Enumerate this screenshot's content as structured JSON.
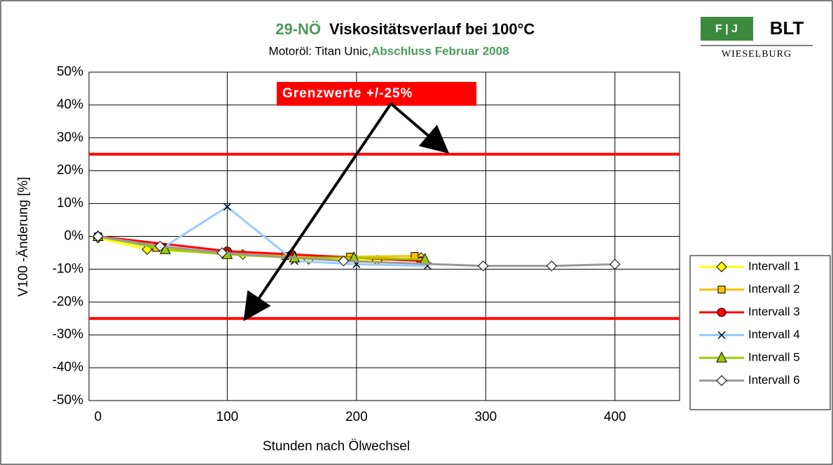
{
  "chart_data": {
    "type": "line",
    "title_parts": [
      "29-NÖ",
      "Viskositätsverlauf bei 100°C"
    ],
    "subtitle_parts": [
      "Motoröl: Titan Unic, ",
      "Abschluss Februar 2008"
    ],
    "logo": {
      "left": "F | J",
      "right": "BLT",
      "bottom": "WIESELBURG"
    },
    "xlabel": "Stunden nach Ölwechsel",
    "ylabel": "V100 -Änderung [%]",
    "annotation": "Grenzwerte +/-25%",
    "limit_lines": [
      25,
      -25
    ],
    "limit_color": "#ff0000",
    "xlim": [
      -7,
      450
    ],
    "xticks": [
      0,
      100,
      200,
      300,
      400
    ],
    "ylim": [
      -50,
      50
    ],
    "yticks": [
      {
        "value": -50,
        "label": "-50%"
      },
      {
        "value": -40,
        "label": "-40%"
      },
      {
        "value": -30,
        "label": "-30%"
      },
      {
        "value": -20,
        "label": "-20%"
      },
      {
        "value": -10,
        "label": "-10%"
      },
      {
        "value": 0,
        "label": "0%"
      },
      {
        "value": 10,
        "label": "10%"
      },
      {
        "value": 20,
        "label": "20%"
      },
      {
        "value": 30,
        "label": "30%"
      },
      {
        "value": 40,
        "label": "40%"
      },
      {
        "value": 50,
        "label": "50%"
      }
    ],
    "grid": true,
    "legend": "right",
    "series": [
      {
        "name": "Intervall 1",
        "color": "#ffff00",
        "marker": "diamond",
        "x": [
          0,
          38,
          112,
          163,
          216,
          250
        ],
        "values": [
          -0.5,
          -4,
          -5.5,
          -7,
          -7.3,
          -6.5
        ]
      },
      {
        "name": "Intervall 2",
        "color": "#ffc000",
        "marker": "square",
        "x": [
          0,
          45,
          145,
          195,
          245
        ],
        "values": [
          0,
          -3.5,
          -6,
          -6.2,
          -6
        ]
      },
      {
        "name": "Intervall 3",
        "color": "#ff0000",
        "marker": "circle",
        "x": [
          0,
          100,
          150,
          250
        ],
        "values": [
          0,
          -4.5,
          -5.5,
          -7.5
        ]
      },
      {
        "name": "Intervall 4",
        "color": "#99ccff",
        "marker": "x",
        "x": [
          0,
          50,
          100,
          152,
          200,
          255
        ],
        "values": [
          0,
          -3.5,
          9,
          -7.5,
          -8.5,
          -9
        ]
      },
      {
        "name": "Intervall 5",
        "color": "#99cc00",
        "marker": "triangle",
        "x": [
          0,
          52,
          100,
          152,
          198,
          253
        ],
        "values": [
          0,
          -4,
          -5.5,
          -6.5,
          -6.5,
          -7
        ]
      },
      {
        "name": "Intervall 6",
        "color": "#999999",
        "marker": "open-diamond",
        "x": [
          0,
          48,
          96,
          190,
          298,
          351,
          400
        ],
        "values": [
          0,
          -3,
          -5,
          -7.5,
          -9,
          -9,
          -8.5
        ]
      }
    ]
  }
}
